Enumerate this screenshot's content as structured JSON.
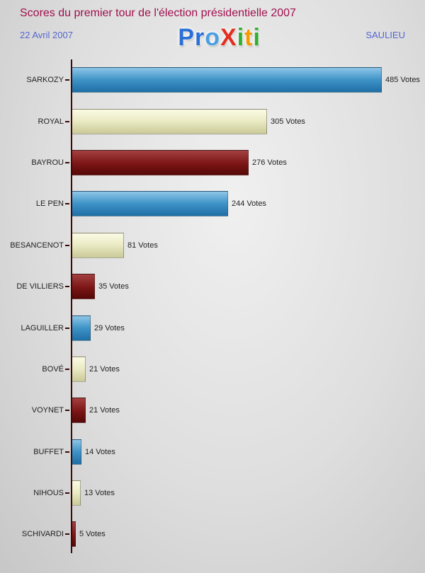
{
  "header": {
    "title": "Scores du premier tour de l'élection présidentielle 2007",
    "date": "22 Avril 2007",
    "place": "SAULIEU",
    "logo_letters": [
      {
        "ch": "P",
        "color": "#2b6fd6"
      },
      {
        "ch": "r",
        "color": "#2b6fd6"
      },
      {
        "ch": "o",
        "color": "#4b9fe0"
      },
      {
        "ch": "X",
        "color": "#e03020"
      },
      {
        "ch": "i",
        "color": "#2fae2f"
      },
      {
        "ch": "t",
        "color": "#f59a00"
      },
      {
        "ch": "i",
        "color": "#2fae2f"
      }
    ]
  },
  "chart_data": {
    "type": "bar",
    "orientation": "horizontal",
    "title": "Scores du premier tour de l'élection présidentielle 2007",
    "categories": [
      "SARKOZY",
      "ROYAL",
      "BAYROU",
      "LE PEN",
      "BESANCENOT",
      "DE VILLIERS",
      "LAGUILLER",
      "BOVÉ",
      "VOYNET",
      "BUFFET",
      "NIHOUS",
      "SCHIVARDI"
    ],
    "values": [
      485,
      305,
      276,
      244,
      81,
      35,
      29,
      21,
      21,
      14,
      13,
      5
    ],
    "value_suffix": " Votes",
    "xlim": [
      0,
      520
    ],
    "legend": "none",
    "grid": false,
    "bar_colors_cycle": [
      "blue",
      "cream",
      "darkred"
    ],
    "colors": {
      "blue": "#2f7fb5",
      "cream": "#e7e7c0",
      "darkred": "#7a1212",
      "axis": "#3c0808",
      "title": "#a0104e",
      "subtitle": "#5566cc"
    }
  }
}
